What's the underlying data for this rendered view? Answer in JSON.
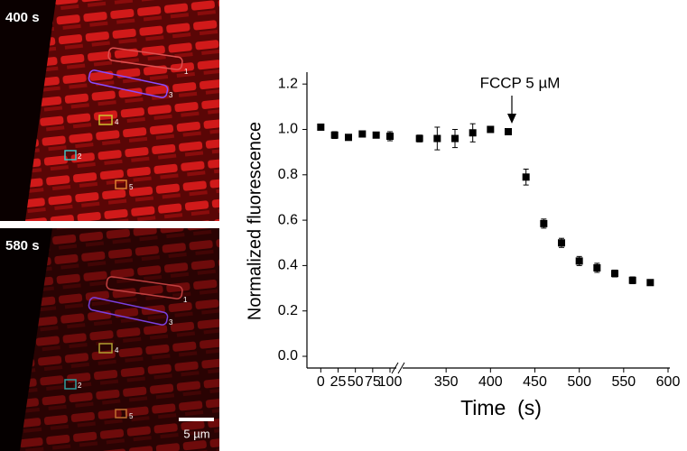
{
  "images": [
    {
      "label": "400 s",
      "roi_labels": [
        "1",
        "3",
        "4",
        "2",
        "5"
      ]
    },
    {
      "label": "580 s",
      "roi_labels": [
        "1",
        "3",
        "4",
        "2",
        "5"
      ]
    }
  ],
  "scale_bar": "5 µm",
  "chart_data": {
    "type": "scatter",
    "annotation": "FCCP 5 µM",
    "x_label": "Time  (s)",
    "y_label": "Normalized fluorescence",
    "x_axis_segments": [
      {
        "xlim": [
          -20,
          100
        ],
        "xticks": [
          0,
          25,
          50,
          75,
          100
        ]
      },
      {
        "xlim": [
          300,
          600
        ],
        "xticks": [
          350,
          400,
          450,
          500,
          550,
          600
        ]
      }
    ],
    "ylim": [
      -0.05,
      1.25
    ],
    "yticks": [
      {
        "value": 0,
        "label": "0.0"
      },
      0.2,
      0.4,
      0.6,
      0.8,
      {
        "value": 1,
        "label": "1.0"
      },
      1.2
    ],
    "series": [
      {
        "color": "#000000",
        "x": [
          0,
          20,
          40,
          60,
          80,
          100,
          320,
          340,
          360,
          380,
          400,
          420,
          440,
          460,
          480,
          500,
          520,
          540,
          560,
          580
        ],
        "values": [
          1.01,
          0.975,
          0.965,
          0.98,
          0.975,
          0.97,
          0.96,
          0.96,
          0.96,
          0.985,
          1.0,
          0.99,
          0.79,
          0.585,
          0.5,
          0.42,
          0.39,
          0.365,
          0.335,
          0.325
        ],
        "errors": [
          0.01,
          0.015,
          0.01,
          0.01,
          0.01,
          0.02,
          0.015,
          0.05,
          0.04,
          0.04,
          0.01,
          0.01,
          0.035,
          0.02,
          0.02,
          0.02,
          0.02,
          0.015,
          0.015,
          0.01
        ]
      }
    ]
  }
}
